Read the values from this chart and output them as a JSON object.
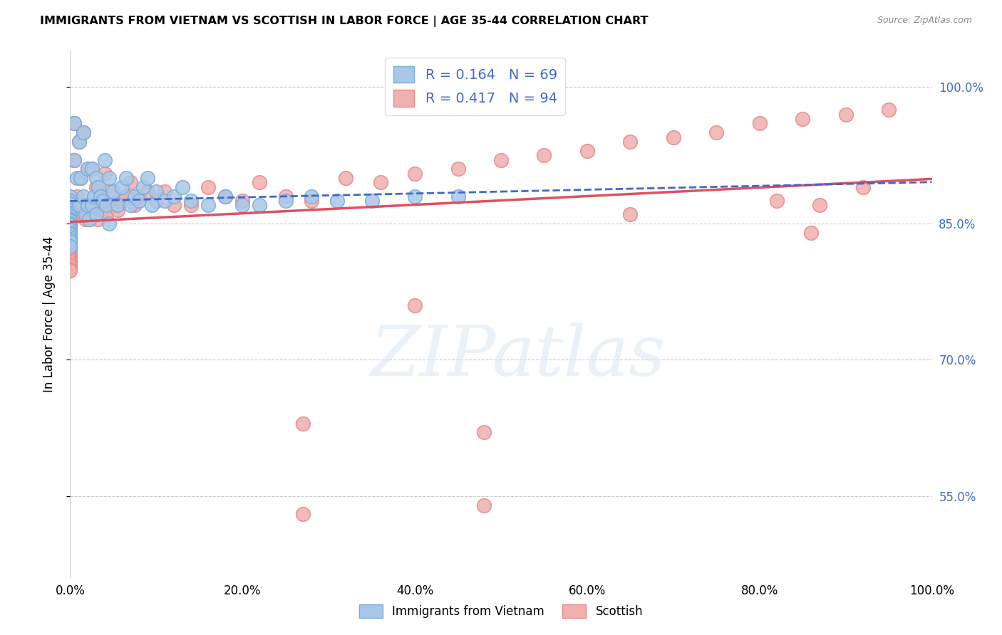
{
  "title": "IMMIGRANTS FROM VIETNAM VS SCOTTISH IN LABOR FORCE | AGE 35-44 CORRELATION CHART",
  "source": "Source: ZipAtlas.com",
  "ylabel": "In Labor Force | Age 35-44",
  "right_ylabel_color": "#4169c8",
  "xtick_labels": [
    "0.0%",
    "20.0%",
    "40.0%",
    "60.0%",
    "80.0%",
    "100.0%"
  ],
  "xlim": [
    0.0,
    1.0
  ],
  "ylim": [
    0.46,
    1.04
  ],
  "vietnam_color": "#a8c8e8",
  "vietnam_edge_color": "#7aabdb",
  "scottish_color": "#f0b0b0",
  "scottish_edge_color": "#e88888",
  "vietnam_line_color": "#4169c8",
  "scottish_line_color": "#e05060",
  "vietnam_R": 0.164,
  "vietnam_N": 69,
  "scottish_R": 0.417,
  "scottish_N": 94,
  "watermark_text": "ZIPatlas",
  "background_color": "#ffffff",
  "vietnam_x": [
    0.0,
    0.0,
    0.0,
    0.0,
    0.0,
    0.0,
    0.0,
    0.0,
    0.0,
    0.0,
    0.0,
    0.0,
    0.0,
    0.0,
    0.0,
    0.0,
    0.0,
    0.0,
    0.0,
    0.0,
    0.005,
    0.005,
    0.008,
    0.01,
    0.01,
    0.012,
    0.015,
    0.015,
    0.018,
    0.02,
    0.02,
    0.022,
    0.025,
    0.025,
    0.028,
    0.03,
    0.03,
    0.033,
    0.035,
    0.038,
    0.04,
    0.042,
    0.045,
    0.045,
    0.05,
    0.055,
    0.06,
    0.065,
    0.07,
    0.075,
    0.08,
    0.085,
    0.09,
    0.095,
    0.1,
    0.11,
    0.12,
    0.13,
    0.14,
    0.16,
    0.18,
    0.2,
    0.22,
    0.25,
    0.28,
    0.31,
    0.35,
    0.4,
    0.45
  ],
  "vietnam_y": [
    0.88,
    0.875,
    0.872,
    0.868,
    0.865,
    0.862,
    0.86,
    0.858,
    0.855,
    0.853,
    0.85,
    0.848,
    0.845,
    0.843,
    0.84,
    0.838,
    0.835,
    0.833,
    0.83,
    0.825,
    0.96,
    0.92,
    0.9,
    0.94,
    0.87,
    0.9,
    0.95,
    0.88,
    0.86,
    0.91,
    0.87,
    0.855,
    0.87,
    0.91,
    0.88,
    0.9,
    0.86,
    0.89,
    0.88,
    0.875,
    0.92,
    0.87,
    0.9,
    0.85,
    0.885,
    0.87,
    0.89,
    0.9,
    0.87,
    0.88,
    0.875,
    0.89,
    0.9,
    0.87,
    0.885,
    0.875,
    0.88,
    0.89,
    0.875,
    0.87,
    0.88,
    0.87,
    0.87,
    0.875,
    0.88,
    0.875,
    0.875,
    0.88,
    0.88
  ],
  "scottish_x": [
    0.0,
    0.0,
    0.0,
    0.0,
    0.0,
    0.0,
    0.0,
    0.0,
    0.0,
    0.0,
    0.0,
    0.0,
    0.0,
    0.0,
    0.0,
    0.0,
    0.0,
    0.0,
    0.0,
    0.0,
    0.0,
    0.0,
    0.0,
    0.0,
    0.0,
    0.0,
    0.0,
    0.0,
    0.0,
    0.0,
    0.005,
    0.005,
    0.008,
    0.01,
    0.01,
    0.012,
    0.015,
    0.015,
    0.018,
    0.02,
    0.02,
    0.022,
    0.025,
    0.025,
    0.028,
    0.03,
    0.032,
    0.035,
    0.038,
    0.04,
    0.042,
    0.045,
    0.05,
    0.055,
    0.06,
    0.065,
    0.07,
    0.075,
    0.08,
    0.09,
    0.1,
    0.11,
    0.12,
    0.14,
    0.16,
    0.18,
    0.2,
    0.22,
    0.25,
    0.28,
    0.32,
    0.36,
    0.4,
    0.45,
    0.5,
    0.55,
    0.6,
    0.65,
    0.7,
    0.75,
    0.8,
    0.85,
    0.9,
    0.95,
    0.27,
    0.48,
    0.27,
    0.48,
    0.65,
    0.82,
    0.87,
    0.92,
    0.86,
    0.4
  ],
  "scottish_y": [
    0.87,
    0.868,
    0.865,
    0.862,
    0.86,
    0.858,
    0.855,
    0.852,
    0.85,
    0.848,
    0.845,
    0.842,
    0.84,
    0.838,
    0.835,
    0.832,
    0.83,
    0.828,
    0.825,
    0.822,
    0.82,
    0.818,
    0.815,
    0.812,
    0.81,
    0.808,
    0.805,
    0.803,
    0.8,
    0.798,
    0.96,
    0.92,
    0.88,
    0.94,
    0.86,
    0.9,
    0.95,
    0.87,
    0.855,
    0.91,
    0.87,
    0.855,
    0.87,
    0.91,
    0.87,
    0.89,
    0.855,
    0.875,
    0.865,
    0.905,
    0.86,
    0.885,
    0.87,
    0.865,
    0.875,
    0.88,
    0.895,
    0.87,
    0.88,
    0.885,
    0.875,
    0.885,
    0.87,
    0.87,
    0.89,
    0.88,
    0.875,
    0.895,
    0.88,
    0.875,
    0.9,
    0.895,
    0.905,
    0.91,
    0.92,
    0.925,
    0.93,
    0.94,
    0.945,
    0.95,
    0.96,
    0.965,
    0.97,
    0.975,
    0.63,
    0.62,
    0.53,
    0.54,
    0.86,
    0.875,
    0.87,
    0.89,
    0.84,
    0.76
  ]
}
